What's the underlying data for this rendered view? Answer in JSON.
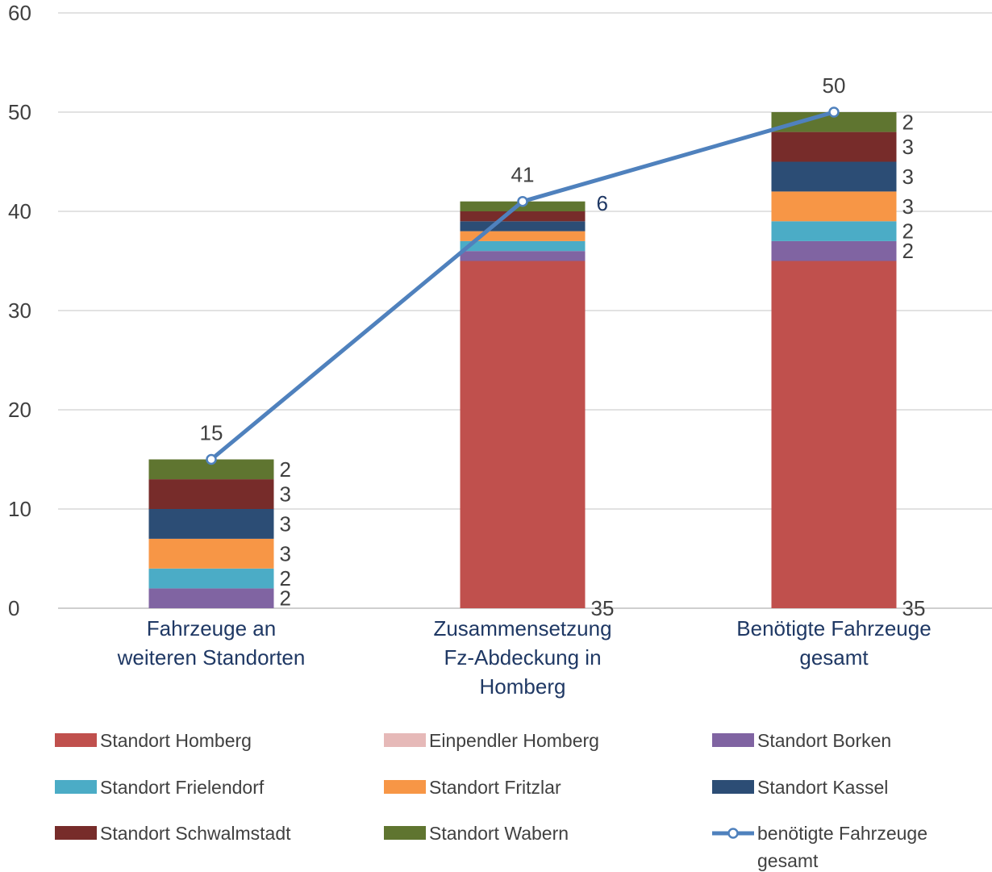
{
  "chart_data": {
    "type": "bar",
    "stacked": true,
    "ylim": [
      0,
      60
    ],
    "yticks": [
      0,
      10,
      20,
      30,
      40,
      50,
      60
    ],
    "grid": true,
    "legend_position": "bottom",
    "categories": [
      [
        "Fahrzeuge an",
        "weiteren Standorten"
      ],
      [
        "Zusammensetzung",
        "Fz-Abdeckung in",
        "Homberg"
      ],
      [
        "Benötigte Fahrzeuge",
        "gesamt"
      ]
    ],
    "series": [
      {
        "name": "Standort Homberg",
        "color": "#c0504d",
        "values": [
          0,
          35,
          35
        ],
        "labels": [
          "",
          "35",
          "35"
        ]
      },
      {
        "name": "Einpendler Homberg",
        "color": "#e6b9b8",
        "values": [
          0,
          0,
          0
        ],
        "labels": [
          "",
          "",
          ""
        ]
      },
      {
        "name": "Standort Borken",
        "color": "#8064a2",
        "values": [
          2,
          1,
          2
        ],
        "labels": [
          "2",
          "",
          "2"
        ]
      },
      {
        "name": "Standort Frielendorf",
        "color": "#4bacc6",
        "values": [
          2,
          1,
          2
        ],
        "labels": [
          "2",
          "",
          "2"
        ]
      },
      {
        "name": "Standort Fritzlar",
        "color": "#f79646",
        "values": [
          3,
          1,
          3
        ],
        "labels": [
          "3",
          "",
          "3"
        ]
      },
      {
        "name": "Standort Kassel",
        "color": "#2c4d75",
        "values": [
          3,
          1,
          3
        ],
        "labels": [
          "3",
          "",
          "3"
        ]
      },
      {
        "name": "Standort Schwalmstadt",
        "color": "#772c2a",
        "values": [
          3,
          1,
          3
        ],
        "labels": [
          "3",
          "",
          "3"
        ]
      },
      {
        "name": "Standort Wabern",
        "color": "#5f7530",
        "values": [
          2,
          1,
          2
        ],
        "labels": [
          "2",
          "",
          "2"
        ]
      }
    ],
    "line": {
      "name": [
        "benötigte Fahrzeuge",
        "gesamt"
      ],
      "color": "#4f81bd",
      "values": [
        15,
        41,
        50
      ],
      "labels": [
        "15",
        "41",
        "50"
      ]
    },
    "extra_labels": [
      {
        "category": 1,
        "text": "6"
      }
    ]
  }
}
